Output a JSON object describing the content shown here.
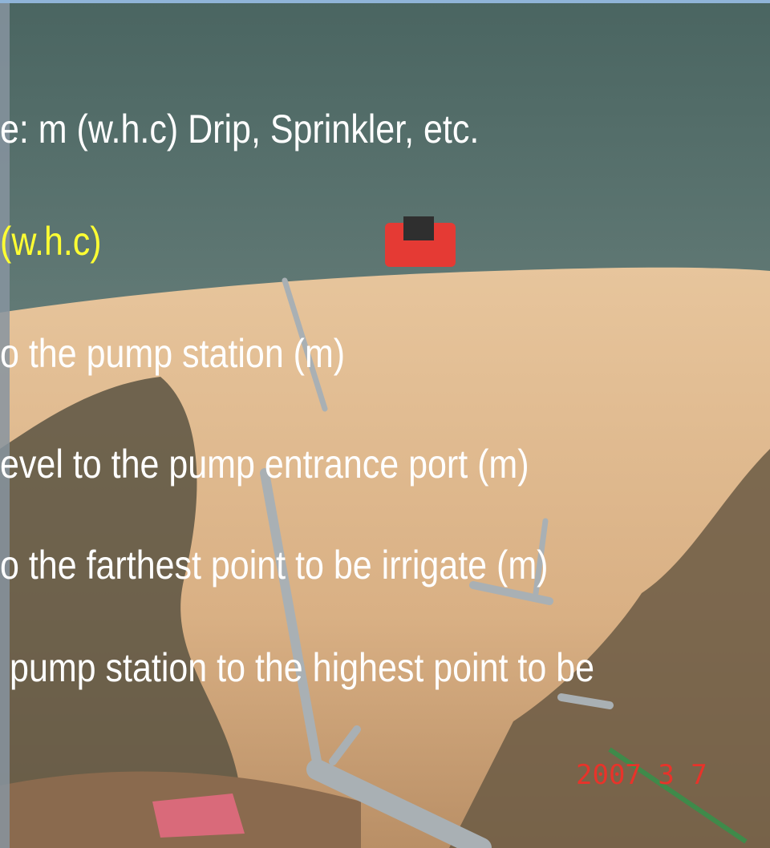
{
  "slide": {
    "lines": [
      "e: m (w.h.c) Drip, Sprinkler, etc.",
      "(w.h.c)",
      "o the pump station (m)",
      "evel to the pump entrance port (m)",
      "o the farthest point to be irrigate (m)",
      "pump station to the highest point to be"
    ],
    "date_stamp": "2007 3 7"
  }
}
